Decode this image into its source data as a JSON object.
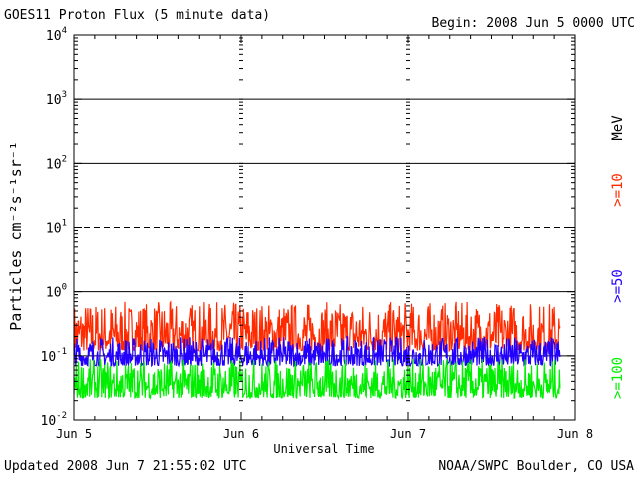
{
  "header": {
    "title": "GOES11 Proton Flux (5 minute data)",
    "begin": "Begin: 2008 Jun 5 0000 UTC"
  },
  "footer": {
    "updated": "Updated 2008 Jun  7 21:55:02 UTC",
    "credit": "NOAA/SWPC Boulder, CO USA"
  },
  "chart_data": {
    "type": "line",
    "xlabel": "Universal Time",
    "ylabel": "Particles cm⁻²s⁻¹sr⁻¹",
    "y_scale": "log",
    "ylim": [
      0.01,
      10000
    ],
    "y_ticks": [
      {
        "base": "10",
        "exp": "-2"
      },
      {
        "base": "10",
        "exp": "-1"
      },
      {
        "base": "10",
        "exp": "0"
      },
      {
        "base": "10",
        "exp": "1"
      },
      {
        "base": "10",
        "exp": "2"
      },
      {
        "base": "10",
        "exp": "3"
      },
      {
        "base": "10",
        "exp": "4"
      }
    ],
    "x_ticks": [
      "Jun 5",
      "Jun 6",
      "Jun 7",
      "Jun 8"
    ],
    "xlim_days": [
      0,
      3
    ],
    "unit_label": "MeV",
    "series": [
      {
        "name": ">=10",
        "color": "#ff2a00",
        "typical_min": 0.12,
        "typical_max": 0.7
      },
      {
        "name": ">=50",
        "color": "#2200ff",
        "typical_min": 0.07,
        "typical_max": 0.2
      },
      {
        "name": ">=100",
        "color": "#00ee00",
        "typical_min": 0.022,
        "typical_max": 0.09
      }
    ],
    "end_day": 2.91,
    "threshold_lines": [
      {
        "value": 1000,
        "style": "solid"
      },
      {
        "value": 100,
        "style": "solid"
      },
      {
        "value": 10,
        "style": "dashed"
      },
      {
        "value": 1,
        "style": "solid"
      },
      {
        "value": 0.1,
        "style": "solid"
      }
    ]
  }
}
